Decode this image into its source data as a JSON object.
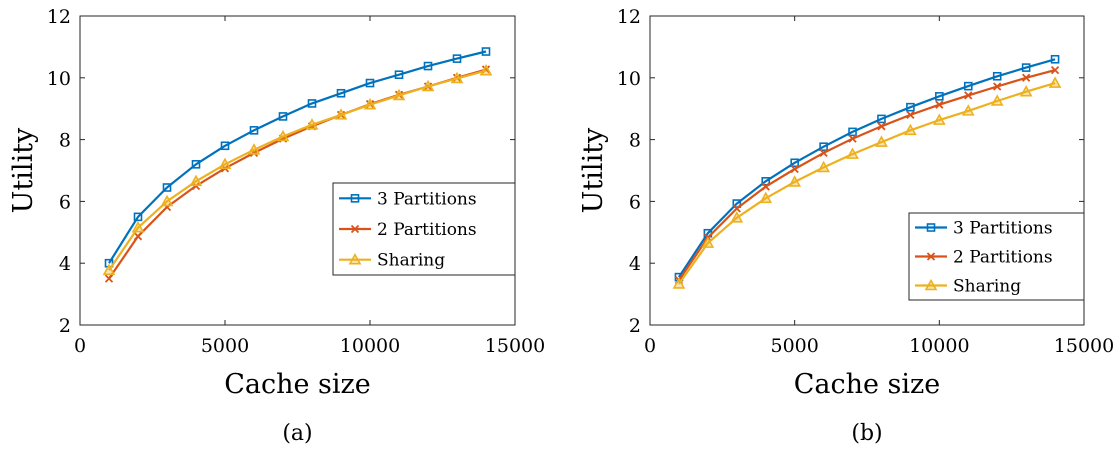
{
  "colors": {
    "3_partitions": "#0072BD",
    "2_partitions": "#D95319",
    "sharing": "#EDB120"
  },
  "chart_data": [
    {
      "type": "line",
      "caption": "(a)",
      "xlabel": "Cache size",
      "ylabel": "Utility",
      "xlim": [
        0,
        15000
      ],
      "ylim": [
        2,
        12
      ],
      "xticks": [
        0,
        5000,
        10000,
        15000
      ],
      "yticks": [
        2,
        4,
        6,
        8,
        10,
        12
      ],
      "grid": false,
      "legend_position": "right",
      "x": [
        1000,
        2000,
        3000,
        4000,
        5000,
        6000,
        7000,
        8000,
        9000,
        10000,
        11000,
        12000,
        13000,
        14000
      ],
      "series": [
        {
          "name": "3 Partitions",
          "marker": "square",
          "values": [
            4.0,
            5.5,
            6.45,
            7.2,
            7.8,
            8.3,
            8.75,
            9.17,
            9.5,
            9.83,
            10.1,
            10.38,
            10.62,
            10.85
          ]
        },
        {
          "name": "2 Partitions",
          "marker": "cross",
          "values": [
            3.5,
            4.87,
            5.82,
            6.5,
            7.07,
            7.57,
            8.03,
            8.43,
            8.8,
            9.15,
            9.45,
            9.72,
            10.0,
            10.27
          ]
        },
        {
          "name": "Sharing",
          "marker": "triangle",
          "values": [
            3.77,
            5.15,
            6.0,
            6.65,
            7.2,
            7.67,
            8.1,
            8.48,
            8.8,
            9.13,
            9.43,
            9.72,
            9.98,
            10.23
          ]
        }
      ]
    },
    {
      "type": "line",
      "caption": "(b)",
      "xlabel": "Cache size",
      "ylabel": "Utility",
      "xlim": [
        0,
        15000
      ],
      "ylim": [
        2,
        12
      ],
      "xticks": [
        0,
        5000,
        10000,
        15000
      ],
      "yticks": [
        2,
        4,
        6,
        8,
        10,
        12
      ],
      "grid": false,
      "legend_position": "bottom-right",
      "x": [
        1000,
        2000,
        3000,
        4000,
        5000,
        6000,
        7000,
        8000,
        9000,
        10000,
        11000,
        12000,
        13000,
        14000
      ],
      "series": [
        {
          "name": "3 Partitions",
          "marker": "square",
          "values": [
            3.55,
            4.97,
            5.93,
            6.65,
            7.25,
            7.77,
            8.25,
            8.67,
            9.05,
            9.4,
            9.73,
            10.05,
            10.33,
            10.6
          ]
        },
        {
          "name": "2 Partitions",
          "marker": "cross",
          "values": [
            3.45,
            4.83,
            5.77,
            6.48,
            7.05,
            7.57,
            8.03,
            8.43,
            8.8,
            9.13,
            9.43,
            9.72,
            10.0,
            10.25
          ]
        },
        {
          "name": "Sharing",
          "marker": "triangle",
          "values": [
            3.33,
            4.65,
            5.47,
            6.1,
            6.63,
            7.1,
            7.53,
            7.92,
            8.3,
            8.63,
            8.93,
            9.25,
            9.55,
            9.83
          ]
        }
      ]
    }
  ]
}
